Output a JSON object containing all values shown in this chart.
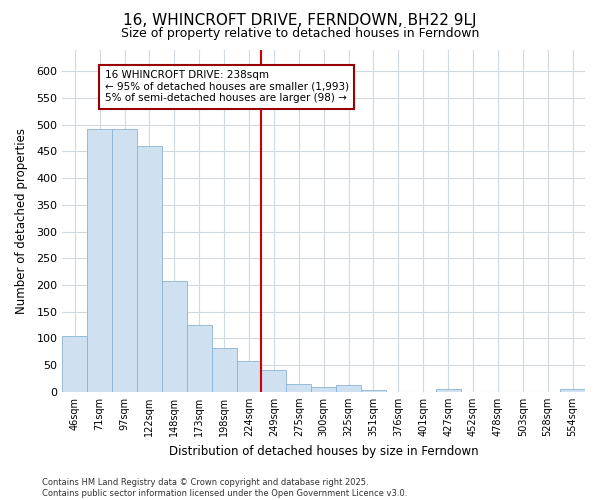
{
  "title": "16, WHINCROFT DRIVE, FERNDOWN, BH22 9LJ",
  "subtitle": "Size of property relative to detached houses in Ferndown",
  "xlabel": "Distribution of detached houses by size in Ferndown",
  "ylabel": "Number of detached properties",
  "categories": [
    "46sqm",
    "71sqm",
    "97sqm",
    "122sqm",
    "148sqm",
    "173sqm",
    "198sqm",
    "224sqm",
    "249sqm",
    "275sqm",
    "300sqm",
    "325sqm",
    "351sqm",
    "376sqm",
    "401sqm",
    "427sqm",
    "452sqm",
    "478sqm",
    "503sqm",
    "528sqm",
    "554sqm"
  ],
  "values": [
    105,
    493,
    493,
    460,
    207,
    125,
    82,
    57,
    40,
    14,
    9,
    12,
    3,
    0,
    0,
    6,
    0,
    0,
    0,
    0,
    6
  ],
  "bar_color": "#cfe0f0",
  "bar_edge_color": "#8ab4d4",
  "annotation_line1": "16 WHINCROFT DRIVE: 238sqm",
  "annotation_line2": "← 95% of detached houses are smaller (1,993)",
  "annotation_line3": "5% of semi-detached houses are larger (98) →",
  "annotation_box_facecolor": "#ffffff",
  "annotation_box_edgecolor": "#990000",
  "vline_color": "#cc0000",
  "ylim": [
    0,
    640
  ],
  "yticks": [
    0,
    50,
    100,
    150,
    200,
    250,
    300,
    350,
    400,
    450,
    500,
    550,
    600
  ],
  "background_color": "#ffffff",
  "grid_color": "#d0d8e0",
  "footer_line1": "Contains HM Land Registry data © Crown copyright and database right 2025.",
  "footer_line2": "Contains public sector information licensed under the Open Government Licence v3.0."
}
